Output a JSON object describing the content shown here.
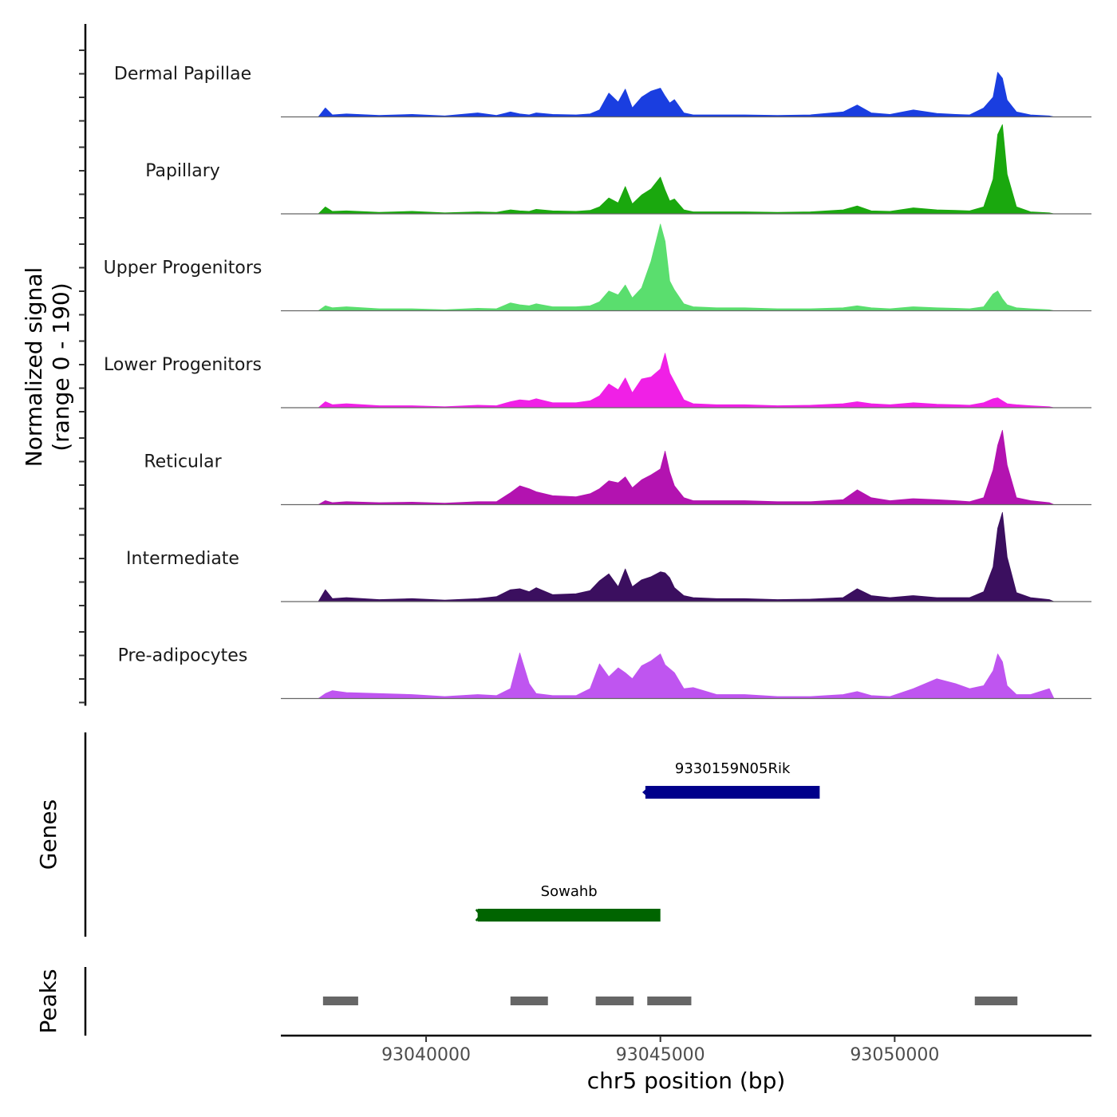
{
  "chart_data": {
    "type": "area",
    "chromosome": "chr5",
    "xlabel": "chr5 position (bp)",
    "xlim": [
      93036900,
      93054200
    ],
    "x_ticks": [
      93040000,
      93045000,
      93050000
    ],
    "x_tick_labels": [
      "93040000",
      "93045000",
      "93050000"
    ],
    "signal_ylabel_line1": "Normalized signal",
    "signal_ylabel_line2": "(range 0 - 190)",
    "signal_range": [
      0,
      190
    ],
    "profile_x": [
      93037700,
      93037850,
      93038000,
      93038300,
      93039000,
      93039700,
      93040400,
      93041100,
      93041500,
      93041800,
      93042000,
      93042200,
      93042350,
      93042700,
      93043200,
      93043500,
      93043700,
      93043900,
      93044100,
      93044250,
      93044400,
      93044600,
      93044800,
      93045000,
      93045100,
      93045200,
      93045300,
      93045500,
      93045700,
      93046200,
      93046800,
      93047500,
      93048200,
      93048900,
      93049200,
      93049500,
      93049900,
      93050400,
      93050900,
      93051300,
      93051600,
      93051900,
      93052100,
      93052200,
      93052300,
      93052400,
      93052600,
      93052900,
      93053300,
      93053400
    ],
    "series": [
      {
        "name": "Dermal Papillae",
        "color": "#1a3ee0",
        "values": [
          0,
          18,
          4,
          6,
          3,
          5,
          2,
          8,
          3,
          10,
          6,
          4,
          8,
          5,
          4,
          6,
          14,
          48,
          30,
          56,
          18,
          40,
          52,
          58,
          42,
          28,
          35,
          8,
          4,
          4,
          4,
          3,
          4,
          10,
          24,
          8,
          5,
          14,
          7,
          5,
          4,
          18,
          40,
          90,
          78,
          34,
          10,
          4,
          2,
          0
        ]
      },
      {
        "name": "Papillary",
        "color": "#1aa80e",
        "values": [
          0,
          14,
          5,
          6,
          3,
          5,
          2,
          4,
          3,
          8,
          6,
          5,
          9,
          6,
          5,
          7,
          14,
          32,
          22,
          55,
          20,
          38,
          50,
          74,
          48,
          26,
          30,
          8,
          4,
          4,
          4,
          3,
          4,
          8,
          16,
          6,
          5,
          12,
          8,
          7,
          6,
          14,
          70,
          160,
          180,
          80,
          14,
          4,
          2,
          0
        ]
      },
      {
        "name": "Upper Progenitors",
        "color": "#5ade6e",
        "values": [
          0,
          10,
          6,
          8,
          4,
          4,
          2,
          5,
          4,
          16,
          12,
          10,
          14,
          8,
          8,
          10,
          18,
          40,
          32,
          52,
          26,
          46,
          100,
          175,
          140,
          60,
          42,
          14,
          8,
          6,
          6,
          4,
          4,
          6,
          10,
          6,
          4,
          8,
          6,
          5,
          4,
          8,
          34,
          40,
          24,
          12,
          6,
          4,
          2,
          0
        ]
      },
      {
        "name": "Lower Progenitors",
        "color": "#f020e6",
        "values": [
          0,
          12,
          6,
          8,
          4,
          4,
          2,
          5,
          4,
          12,
          16,
          14,
          18,
          10,
          10,
          14,
          24,
          48,
          36,
          60,
          30,
          58,
          62,
          78,
          110,
          70,
          52,
          16,
          8,
          6,
          6,
          4,
          5,
          8,
          12,
          8,
          6,
          10,
          7,
          6,
          5,
          10,
          18,
          20,
          14,
          8,
          6,
          4,
          2,
          0
        ]
      },
      {
        "name": "Reticular",
        "color": "#b313b0",
        "values": [
          0,
          8,
          4,
          6,
          4,
          5,
          3,
          6,
          6,
          24,
          38,
          32,
          26,
          18,
          16,
          22,
          32,
          48,
          44,
          56,
          34,
          50,
          60,
          72,
          108,
          66,
          38,
          14,
          8,
          8,
          8,
          6,
          6,
          10,
          30,
          14,
          8,
          12,
          10,
          8,
          6,
          14,
          70,
          120,
          150,
          80,
          14,
          8,
          4,
          0
        ]
      },
      {
        "name": "Intermediate",
        "color": "#3b0f5f",
        "values": [
          0,
          24,
          6,
          8,
          4,
          6,
          3,
          6,
          10,
          24,
          26,
          20,
          28,
          14,
          16,
          22,
          42,
          56,
          30,
          66,
          30,
          44,
          50,
          60,
          58,
          48,
          28,
          12,
          8,
          6,
          6,
          4,
          5,
          8,
          26,
          12,
          8,
          12,
          8,
          8,
          8,
          20,
          70,
          148,
          180,
          90,
          18,
          8,
          4,
          0
        ]
      },
      {
        "name": "Pre-adipocytes",
        "color": "#bf55f0",
        "values": [
          0,
          10,
          16,
          12,
          10,
          8,
          4,
          8,
          6,
          20,
          92,
          30,
          10,
          6,
          6,
          20,
          70,
          44,
          62,
          52,
          40,
          66,
          76,
          90,
          68,
          60,
          52,
          20,
          22,
          8,
          8,
          4,
          4,
          8,
          14,
          6,
          4,
          20,
          40,
          30,
          20,
          26,
          56,
          90,
          74,
          26,
          8,
          8,
          20,
          0
        ]
      }
    ],
    "genes_label": "Genes",
    "genes": [
      {
        "name": "9330159N05Rik",
        "start": 93044680,
        "end": 93048400,
        "color": "#00008b",
        "strand": "-"
      },
      {
        "name": "Sowahb",
        "start": 93041100,
        "end": 93045000,
        "color": "#006400",
        "strand": "+"
      }
    ],
    "peaks_label": "Peaks",
    "peak_color": "#666666",
    "peaks": [
      {
        "start": 93037800,
        "end": 93038550
      },
      {
        "start": 93041800,
        "end": 93042600
      },
      {
        "start": 93043620,
        "end": 93044430
      },
      {
        "start": 93044720,
        "end": 93045660
      },
      {
        "start": 93051710,
        "end": 93052620
      }
    ]
  }
}
